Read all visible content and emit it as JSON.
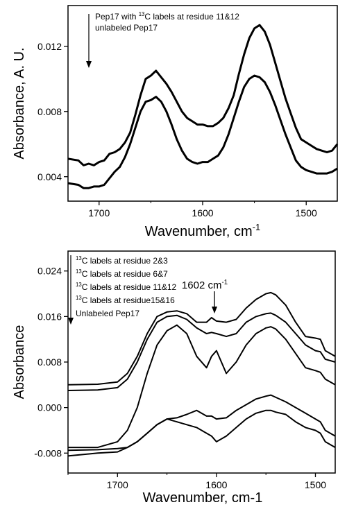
{
  "chart_data": [
    {
      "type": "line",
      "title": "",
      "xlabel_main": "Wavenumber, cm",
      "xlabel_sup": "-1",
      "ylabel": "Absorbance, A. U.",
      "xlim": [
        1730,
        1470
      ],
      "ylim": [
        0.0025,
        0.0145
      ],
      "x_ticks": [
        1700,
        1600,
        1500
      ],
      "y_ticks": [
        0.004,
        0.008,
        0.012
      ],
      "y_tick_labels": [
        "0.004",
        "0.008",
        "0.012"
      ],
      "legend_lines": [
        {
          "pre": "Pep17 with ",
          "sup": "13",
          "post": "C labels at residue 11&12"
        },
        {
          "pre": "unlabeled Pep17",
          "sup": "",
          "post": ""
        }
      ],
      "arrow_direction": "down",
      "series": [
        {
          "x": [
            1730,
            1720,
            1715,
            1710,
            1705,
            1700,
            1695,
            1690,
            1685,
            1680,
            1675,
            1670,
            1665,
            1660,
            1655,
            1650,
            1645,
            1640,
            1635,
            1630,
            1625,
            1620,
            1615,
            1610,
            1605,
            1600,
            1595,
            1590,
            1585,
            1580,
            1575,
            1570,
            1565,
            1560,
            1555,
            1550,
            1545,
            1540,
            1535,
            1530,
            1525,
            1520,
            1515,
            1510,
            1505,
            1500,
            1495,
            1490,
            1485,
            1480,
            1475,
            1470
          ],
          "y": [
            0.0051,
            0.005,
            0.0047,
            0.0048,
            0.0047,
            0.0049,
            0.005,
            0.0054,
            0.0055,
            0.0057,
            0.0061,
            0.0067,
            0.0078,
            0.009,
            0.01,
            0.0102,
            0.0105,
            0.0101,
            0.0097,
            0.0092,
            0.0086,
            0.008,
            0.0076,
            0.0074,
            0.0072,
            0.0072,
            0.0071,
            0.0071,
            0.0073,
            0.0076,
            0.0082,
            0.009,
            0.0103,
            0.0115,
            0.0125,
            0.0131,
            0.0133,
            0.0129,
            0.0121,
            0.011,
            0.0099,
            0.0088,
            0.0079,
            0.007,
            0.0063,
            0.0061,
            0.0059,
            0.0057,
            0.0056,
            0.0055,
            0.0056,
            0.006
          ]
        },
        {
          "x": [
            1730,
            1720,
            1715,
            1710,
            1705,
            1700,
            1695,
            1690,
            1685,
            1680,
            1675,
            1670,
            1665,
            1660,
            1655,
            1650,
            1645,
            1640,
            1635,
            1630,
            1625,
            1620,
            1615,
            1610,
            1605,
            1600,
            1595,
            1590,
            1585,
            1580,
            1575,
            1570,
            1565,
            1560,
            1555,
            1550,
            1545,
            1540,
            1535,
            1530,
            1525,
            1520,
            1515,
            1510,
            1505,
            1500,
            1495,
            1490,
            1485,
            1480,
            1475,
            1470
          ],
          "y": [
            0.0036,
            0.0035,
            0.0033,
            0.0033,
            0.0034,
            0.0034,
            0.0035,
            0.0039,
            0.0043,
            0.0046,
            0.0052,
            0.006,
            0.007,
            0.008,
            0.0086,
            0.0087,
            0.0089,
            0.0086,
            0.008,
            0.0072,
            0.0063,
            0.0056,
            0.0051,
            0.0049,
            0.0048,
            0.0049,
            0.0049,
            0.0051,
            0.0053,
            0.0058,
            0.0066,
            0.0076,
            0.0086,
            0.0095,
            0.01,
            0.0102,
            0.0101,
            0.0098,
            0.0092,
            0.0084,
            0.0075,
            0.0066,
            0.0058,
            0.005,
            0.0046,
            0.0044,
            0.0043,
            0.0042,
            0.0042,
            0.0042,
            0.0043,
            0.0045
          ]
        }
      ]
    },
    {
      "type": "line",
      "title": "",
      "xlabel": "Wavenumber, cm-1",
      "ylabel": "Absorbance",
      "xlim": [
        1750,
        1480
      ],
      "ylim": [
        -0.0115,
        0.0275
      ],
      "x_ticks": [
        1700,
        1600,
        1500
      ],
      "y_ticks": [
        -0.008,
        0.0,
        0.008,
        0.016,
        0.024
      ],
      "y_tick_labels": [
        "-0.008",
        "0.000",
        "0.008",
        "0.016",
        "0.024"
      ],
      "legend_lines": [
        {
          "pre": "",
          "sup": "13",
          "post": "C labels at residue 2&3"
        },
        {
          "pre": "",
          "sup": "13",
          "post": "C labels at residue 6&7"
        },
        {
          "pre": "",
          "sup": "13",
          "post": "C labels at residue 11&12"
        },
        {
          "pre": "",
          "sup": "13",
          "post": "C labels at residue15&16"
        },
        {
          "pre": "Unlabeled Pep17",
          "sup": "",
          "post": ""
        }
      ],
      "arrow_direction": "down",
      "annotation": {
        "pre": "1602 cm",
        "sup": "-1",
        "x": 1602
      },
      "series": [
        {
          "x": [
            1750,
            1720,
            1700,
            1690,
            1680,
            1670,
            1660,
            1650,
            1640,
            1630,
            1620,
            1610,
            1605,
            1600,
            1590,
            1580,
            1570,
            1560,
            1550,
            1545,
            1540,
            1530,
            1520,
            1510,
            1500,
            1495,
            1490,
            1480
          ],
          "y": [
            0.004,
            0.0041,
            0.0045,
            0.006,
            0.009,
            0.013,
            0.016,
            0.0168,
            0.017,
            0.0165,
            0.015,
            0.015,
            0.0158,
            0.0152,
            0.015,
            0.0155,
            0.0175,
            0.019,
            0.02,
            0.0202,
            0.0198,
            0.018,
            0.015,
            0.0125,
            0.0122,
            0.012,
            0.01,
            0.009
          ]
        },
        {
          "x": [
            1750,
            1720,
            1700,
            1690,
            1680,
            1670,
            1660,
            1650,
            1640,
            1630,
            1620,
            1610,
            1605,
            1600,
            1590,
            1580,
            1570,
            1560,
            1550,
            1545,
            1540,
            1530,
            1520,
            1510,
            1500,
            1495,
            1490,
            1480
          ],
          "y": [
            0.003,
            0.0031,
            0.0035,
            0.005,
            0.008,
            0.012,
            0.015,
            0.016,
            0.0162,
            0.0155,
            0.014,
            0.013,
            0.0132,
            0.013,
            0.0125,
            0.013,
            0.015,
            0.016,
            0.0165,
            0.0166,
            0.0162,
            0.015,
            0.013,
            0.011,
            0.01,
            0.0098,
            0.0085,
            0.008
          ]
        },
        {
          "x": [
            1750,
            1720,
            1700,
            1690,
            1680,
            1670,
            1660,
            1650,
            1640,
            1630,
            1620,
            1610,
            1605,
            1600,
            1590,
            1580,
            1570,
            1560,
            1550,
            1545,
            1540,
            1530,
            1520,
            1510,
            1500,
            1495,
            1490,
            1480
          ],
          "y": [
            -0.007,
            -0.007,
            -0.006,
            -0.004,
            0.0,
            0.006,
            0.011,
            0.0135,
            0.0145,
            0.013,
            0.009,
            0.007,
            0.009,
            0.01,
            0.006,
            0.008,
            0.011,
            0.013,
            0.014,
            0.0142,
            0.0138,
            0.012,
            0.0095,
            0.007,
            0.0065,
            0.0062,
            0.005,
            0.004
          ]
        },
        {
          "x": [
            1750,
            1720,
            1700,
            1690,
            1680,
            1670,
            1660,
            1650,
            1640,
            1630,
            1620,
            1610,
            1605,
            1600,
            1590,
            1580,
            1570,
            1560,
            1550,
            1545,
            1540,
            1530,
            1520,
            1510,
            1500,
            1495,
            1490,
            1480
          ],
          "y": [
            -0.0075,
            -0.0074,
            -0.0072,
            -0.007,
            -0.006,
            -0.0045,
            -0.003,
            -0.002,
            -0.0018,
            -0.0012,
            -0.0005,
            -0.0015,
            -0.0015,
            -0.002,
            -0.0018,
            -0.0005,
            0.0005,
            0.0015,
            0.002,
            0.0022,
            0.0018,
            0.001,
            0.0,
            -0.001,
            -0.002,
            -0.0025,
            -0.004,
            -0.005
          ]
        },
        {
          "x": [
            1750,
            1720,
            1700,
            1690,
            1680,
            1670,
            1660,
            1650,
            1640,
            1630,
            1620,
            1610,
            1605,
            1600,
            1590,
            1580,
            1570,
            1560,
            1550,
            1545,
            1540,
            1530,
            1520,
            1510,
            1500,
            1495,
            1490,
            1480
          ],
          "y": [
            -0.0085,
            -0.008,
            -0.0078,
            -0.007,
            -0.006,
            -0.0045,
            -0.003,
            -0.002,
            -0.0025,
            -0.003,
            -0.0035,
            -0.0045,
            -0.005,
            -0.006,
            -0.005,
            -0.0035,
            -0.002,
            -0.001,
            -0.0005,
            -0.0005,
            -0.0008,
            -0.0012,
            -0.0025,
            -0.0035,
            -0.004,
            -0.0045,
            -0.006,
            -0.007
          ]
        }
      ]
    }
  ]
}
